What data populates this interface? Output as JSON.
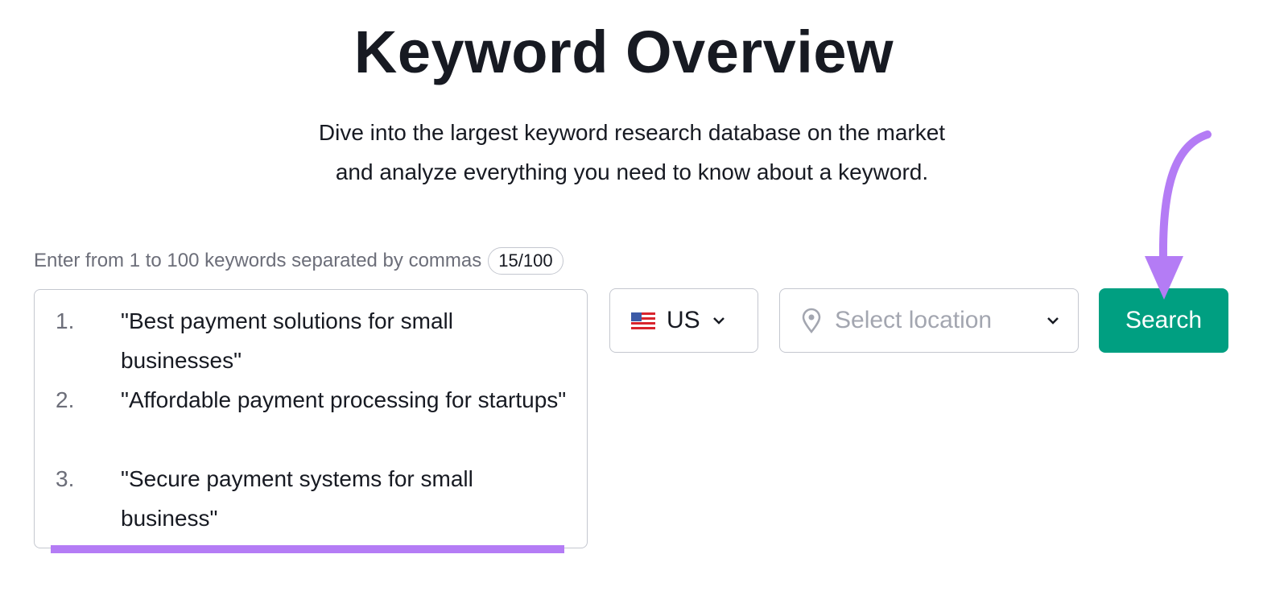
{
  "header": {
    "title": "Keyword Overview",
    "subtitle_line1": "Dive into the largest keyword research database on the market",
    "subtitle_line2": "and analyze everything you need to know about a keyword."
  },
  "form": {
    "label": "Enter from 1 to 100 keywords separated by commas",
    "count_badge": "15/100",
    "keywords": [
      {
        "num": "1.",
        "text": "\"Best payment solutions for small businesses\""
      },
      {
        "num": "2.",
        "text": "\"Affordable payment processing for startups\""
      },
      {
        "num": "3.",
        "text": "\"Secure payment systems for small business\""
      }
    ],
    "database": {
      "value": "US",
      "icon": "us-flag-icon"
    },
    "location": {
      "placeholder": "Select location",
      "icon": "map-pin-icon"
    },
    "search_label": "Search"
  },
  "colors": {
    "accent": "#009f81",
    "annotation": "#b47cf5"
  }
}
